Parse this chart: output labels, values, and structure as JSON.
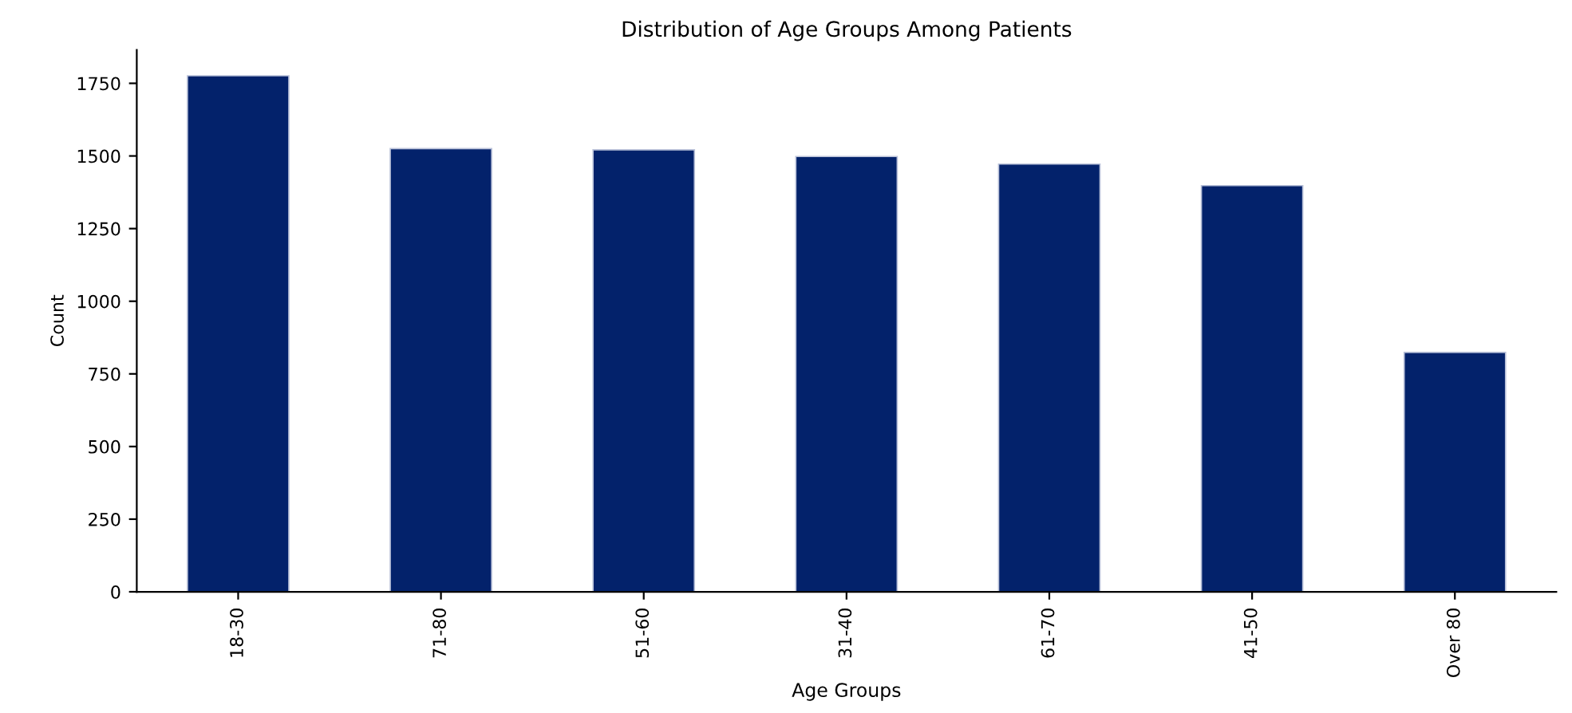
{
  "chart_data": {
    "type": "bar",
    "title": "Distribution of Age Groups Among Patients",
    "xlabel": "Age Groups",
    "ylabel": "Count",
    "categories": [
      "18-30",
      "71-80",
      "51-60",
      "31-40",
      "61-70",
      "41-50",
      "Over 80"
    ],
    "values": [
      1776,
      1525,
      1521,
      1498,
      1472,
      1398,
      824
    ],
    "color": "#03226b",
    "ylim": [
      0,
      1865
    ],
    "yticks": [
      0,
      250,
      500,
      750,
      1000,
      1250,
      1500,
      1750
    ],
    "grid": false,
    "legend": false
  }
}
